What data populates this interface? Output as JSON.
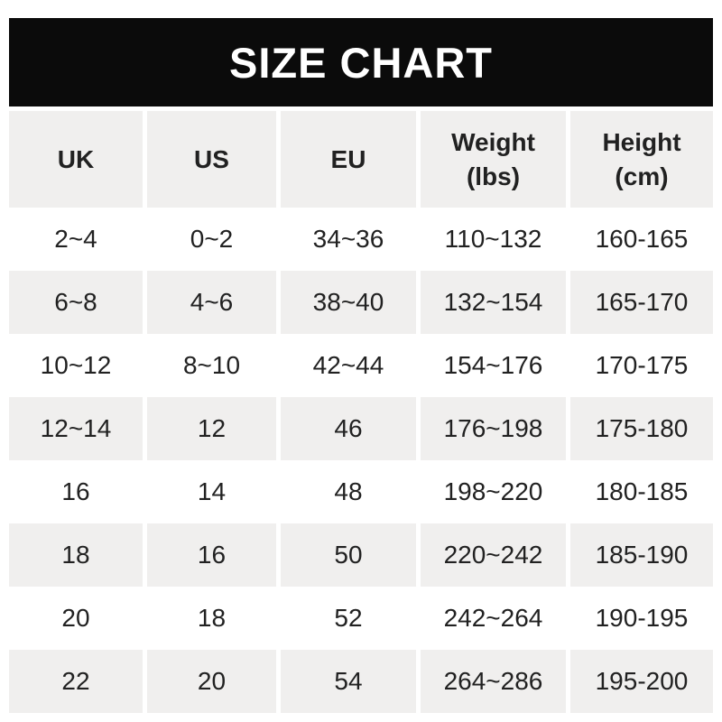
{
  "title": "SIZE CHART",
  "colors": {
    "banner_bg": "#0b0b0b",
    "banner_text": "#ffffff",
    "header_bg": "#f0efee",
    "row_bg": "#ffffff",
    "row_alt_bg": "#f0efee",
    "text": "#212121",
    "page_bg": "#ffffff"
  },
  "chart_data": {
    "type": "table",
    "title": "SIZE CHART",
    "columns": [
      "UK",
      "US",
      "EU",
      "Weight (lbs)",
      "Height (cm)"
    ],
    "header_display": [
      "UK",
      "US",
      "EU",
      "Weight\n(lbs)",
      "Height\n(cm)"
    ],
    "rows": [
      [
        "2~4",
        "0~2",
        "34~36",
        "110~132",
        "160-165"
      ],
      [
        "6~8",
        "4~6",
        "38~40",
        "132~154",
        "165-170"
      ],
      [
        "10~12",
        "8~10",
        "42~44",
        "154~176",
        "170-175"
      ],
      [
        "12~14",
        "12",
        "46",
        "176~198",
        "175-180"
      ],
      [
        "16",
        "14",
        "48",
        "198~220",
        "180-185"
      ],
      [
        "18",
        "16",
        "50",
        "220~242",
        "185-190"
      ],
      [
        "20",
        "18",
        "52",
        "242~264",
        "190-195"
      ],
      [
        "22",
        "20",
        "54",
        "264~286",
        "195-200"
      ]
    ]
  }
}
